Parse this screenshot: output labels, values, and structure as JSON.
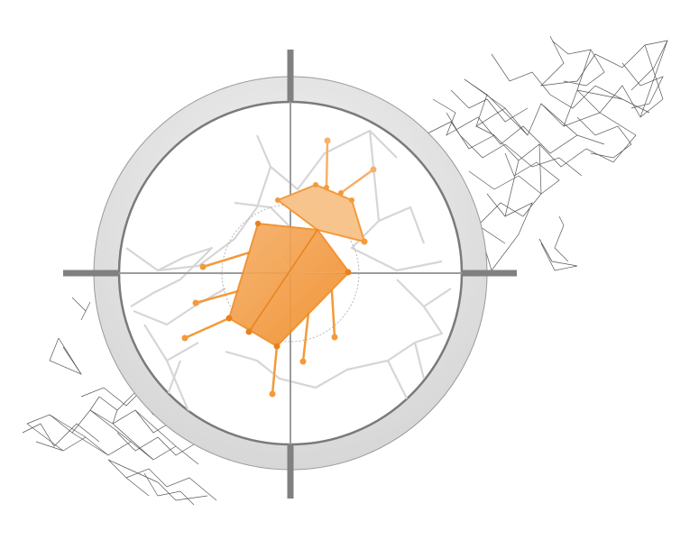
{
  "illustration": {
    "subject": "bug-in-crosshair-icon",
    "colors": {
      "background": "#ffffff",
      "ring": "#e6e6e6",
      "ring_edge": "#7a7a7a",
      "crosshair": "#808080",
      "network_lines": "#3a3a3a",
      "inner_network": "#d9d9d9",
      "bug_orange": "#f39a3a",
      "bug_orange_dark": "#e8811c",
      "bug_orange_light": "#f8bf82"
    }
  }
}
